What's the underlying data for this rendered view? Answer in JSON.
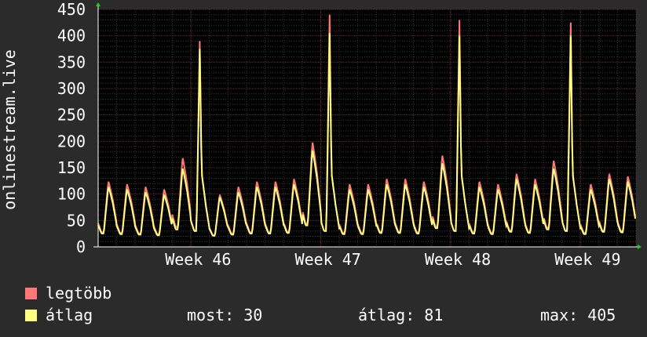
{
  "chart_data": {
    "type": "line",
    "title": "",
    "ylabel": "onlinestream.live",
    "xlabel": "",
    "ylim": [
      0,
      450
    ],
    "y_ticks": [
      0,
      50,
      100,
      150,
      200,
      250,
      300,
      350,
      400,
      450
    ],
    "x_ticks": [
      {
        "label": "Week 46",
        "day": 5.3
      },
      {
        "label": "Week 47",
        "day": 12.3
      },
      {
        "label": "Week 48",
        "day": 19.3
      },
      {
        "label": "Week 49",
        "day": 26.3
      }
    ],
    "grid": true,
    "daily_peak_max": [
      125,
      120,
      115,
      110,
      170,
      390,
      100,
      115,
      125,
      125,
      130,
      200,
      440,
      120,
      120,
      130,
      130,
      125,
      175,
      430,
      125,
      120,
      140,
      130,
      165,
      425,
      120,
      140,
      135
    ],
    "daily_peak_avg": [
      115,
      110,
      105,
      100,
      150,
      375,
      95,
      105,
      115,
      115,
      120,
      185,
      405,
      110,
      110,
      120,
      120,
      115,
      160,
      400,
      115,
      110,
      130,
      120,
      150,
      400,
      110,
      130,
      125
    ],
    "series": [
      {
        "name": "legtöbb",
        "color": "#ff7777"
      },
      {
        "name": "átlag",
        "color": "#ffff80"
      }
    ]
  },
  "legend": {
    "max_label": "legtöbb",
    "avg_label": "átlag",
    "max_color": "#ff7777",
    "avg_color": "#ffff80"
  },
  "stats": {
    "current": "most: 30",
    "average": "átlag: 81",
    "maximum": "max: 405"
  }
}
